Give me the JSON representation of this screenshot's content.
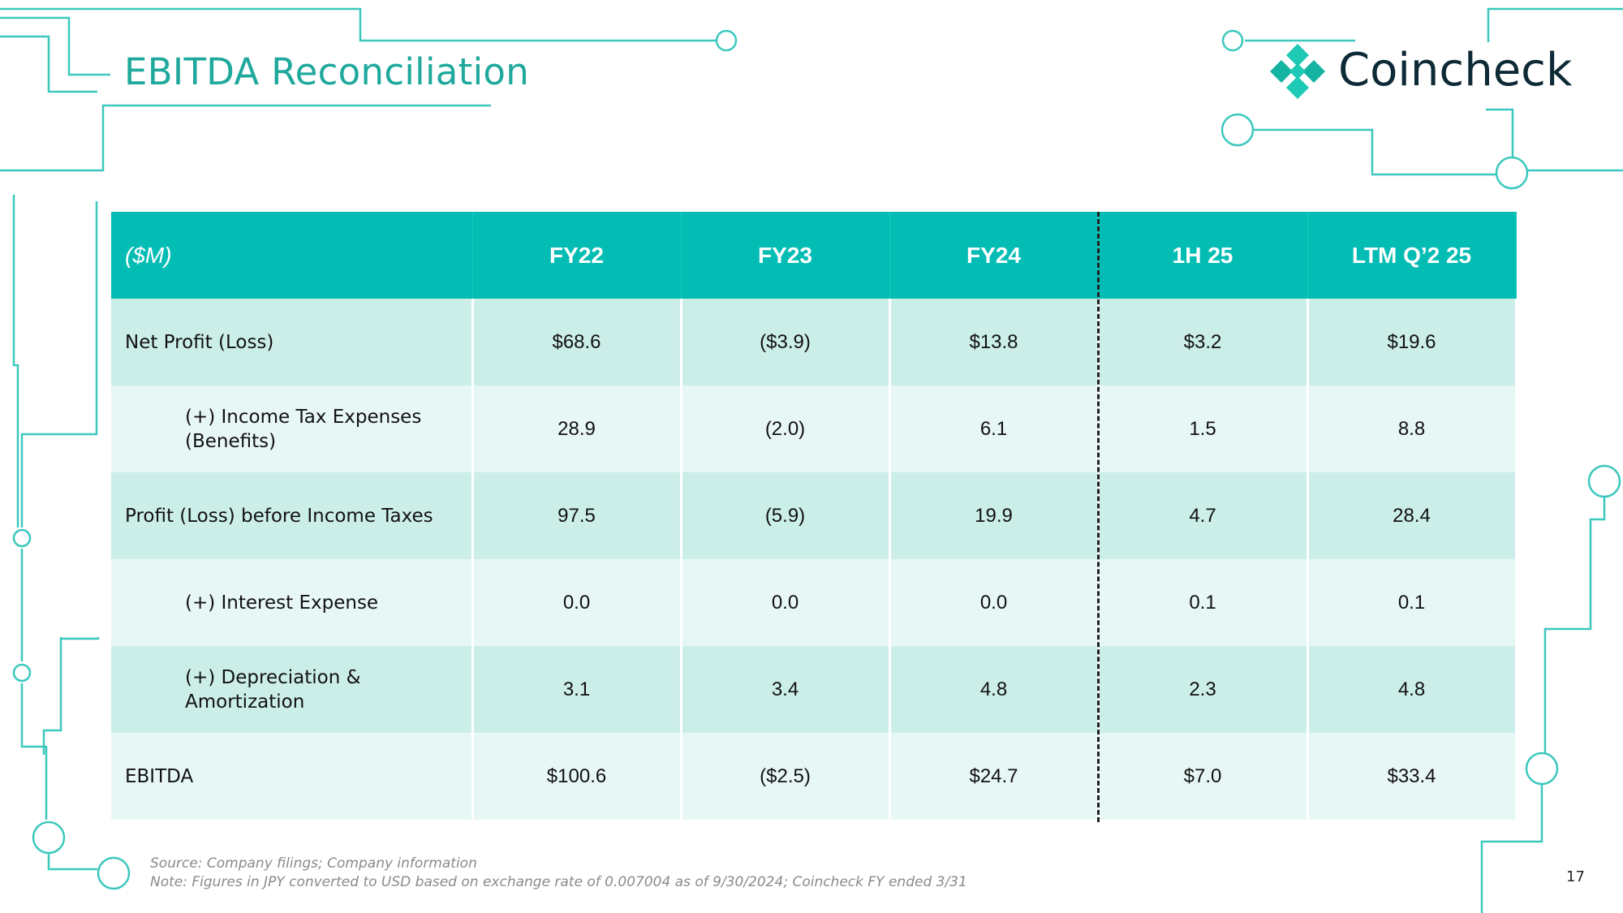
{
  "slide": {
    "title": "EBITDA Reconciliation",
    "page_number": "17"
  },
  "logo": {
    "name": "Coincheck",
    "mark_icon": "coincheck-diamond-logo-icon",
    "brand_color": "#1ec9b5",
    "text_color": "#0d2a36"
  },
  "colors": {
    "accent": "#1fa89c",
    "header_bg": "#03bdb4",
    "row_dark": "#cceee9",
    "row_light": "#e7f7f5",
    "circuit_lines": "#3cc8be"
  },
  "table": {
    "headers": [
      "($M)",
      "FY22",
      "FY23",
      "FY24",
      "1H 25",
      "LTM Q’2 25"
    ],
    "rows": [
      {
        "label_lines": [
          "Net Profit (Loss)"
        ],
        "values": [
          "$68.6",
          "($3.9)",
          "$13.8",
          "$3.2",
          "$19.6"
        ]
      },
      {
        "label_lines": [
          "(+) Income Tax Expenses",
          "(Benefits)"
        ],
        "values": [
          "28.9",
          "(2.0)",
          "6.1",
          "1.5",
          "8.8"
        ]
      },
      {
        "label_lines": [
          "Profit (Loss) before Income Taxes"
        ],
        "values": [
          "97.5",
          "(5.9)",
          "19.9",
          "4.7",
          "28.4"
        ]
      },
      {
        "label_lines": [
          "(+) Interest Expense"
        ],
        "values": [
          "0.0",
          "0.0",
          "0.0",
          "0.1",
          "0.1"
        ]
      },
      {
        "label_lines": [
          "(+) Depreciation &",
          "Amortization"
        ],
        "values": [
          "3.1",
          "3.4",
          "4.8",
          "2.3",
          "4.8"
        ]
      },
      {
        "label_lines": [
          "EBITDA"
        ],
        "values": [
          "$100.6",
          "($2.5)",
          "$24.7",
          "$7.0",
          "$33.4"
        ]
      }
    ]
  },
  "footer": {
    "source": "Source: Company filings; Company information",
    "note": "Note: Figures in JPY converted to USD based on exchange rate of 0.007004 as of 9/30/2024; Coincheck FY ended 3/31"
  }
}
